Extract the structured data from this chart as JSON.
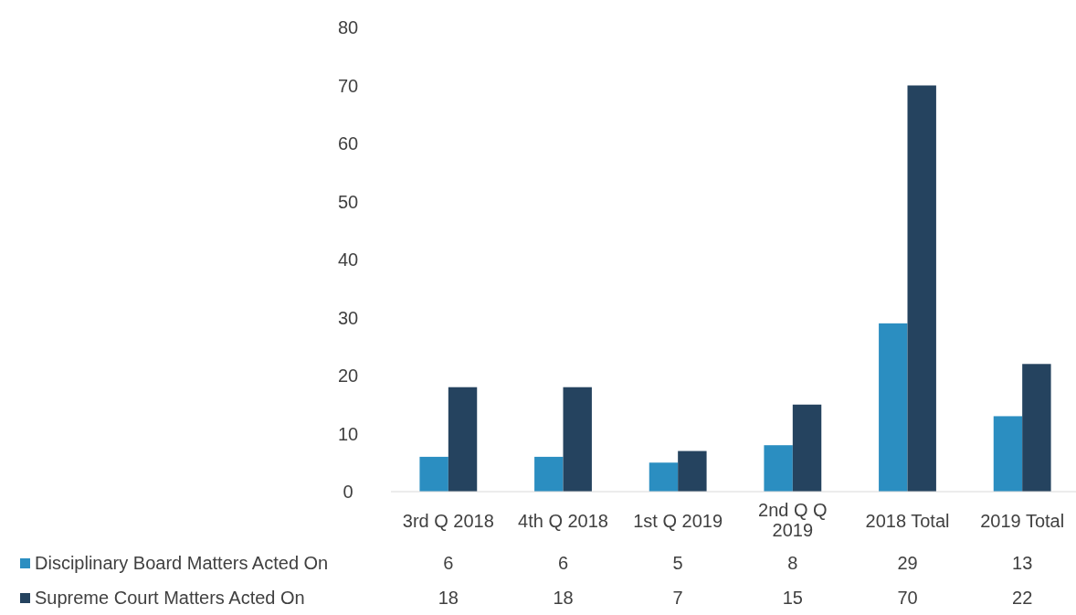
{
  "chart_data": {
    "type": "bar",
    "categories": [
      "3rd Q 2018",
      "4th Q 2018",
      "1st Q 2019",
      "2nd Q Q 2019",
      "2018 Total",
      "2019 Total"
    ],
    "series": [
      {
        "name": "Disciplinary Board Matters Acted On",
        "color": "#2b8ec1",
        "values": [
          6,
          6,
          5,
          8,
          29,
          13
        ]
      },
      {
        "name": "Supreme Court Matters Acted On",
        "color": "#25435f",
        "values": [
          18,
          18,
          7,
          15,
          70,
          22
        ]
      }
    ],
    "ylim": [
      0,
      80
    ],
    "yticks": [
      0,
      10,
      20,
      30,
      40,
      50,
      60,
      70,
      80
    ],
    "data_labels": true,
    "legend": "bottom"
  }
}
